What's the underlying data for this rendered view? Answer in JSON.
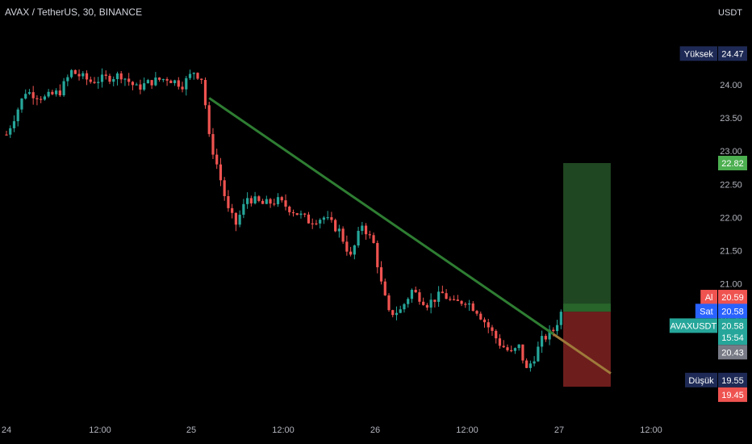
{
  "header": {
    "title": "AVAX / TetherUS, 30, BINANCE",
    "currency": "USDT"
  },
  "colors": {
    "background": "#000000",
    "up": "#26a69a",
    "down": "#ef5350",
    "trendline": "#2e7d32",
    "tp_zone": "#1f4722",
    "sl_zone": "#6e1d1d"
  },
  "chart_data": {
    "type": "candlestick",
    "y_ticks": [
      24.0,
      23.5,
      23.0,
      22.5,
      22.0,
      21.5,
      21.0,
      20.5,
      20.0
    ],
    "y_tick_labels": [
      "24.00",
      "23.50",
      "23.00",
      "22.50",
      "22.00",
      "21.50",
      "21.00",
      "20.50",
      "20.00"
    ],
    "x_tick_labels": [
      "24",
      "12:00",
      "25",
      "12:00",
      "26",
      "12:00",
      "27",
      "12:00"
    ],
    "close_path": [
      [
        0,
        23.25
      ],
      [
        5,
        23.9
      ],
      [
        10,
        23.8
      ],
      [
        14,
        23.9
      ],
      [
        17,
        24.2
      ],
      [
        22,
        24.05
      ],
      [
        26,
        24.1
      ],
      [
        30,
        24.15
      ],
      [
        34,
        23.95
      ],
      [
        38,
        24.05
      ],
      [
        42,
        24.1
      ],
      [
        46,
        24.0
      ],
      [
        49,
        24.2
      ],
      [
        51,
        24.1
      ],
      [
        52,
        23.7
      ],
      [
        53,
        23.2
      ],
      [
        55,
        22.8
      ],
      [
        58,
        22.1
      ],
      [
        60,
        21.9
      ],
      [
        63,
        22.3
      ],
      [
        67,
        22.2
      ],
      [
        71,
        22.25
      ],
      [
        75,
        22.1
      ],
      [
        79,
        21.95
      ],
      [
        83,
        22.0
      ],
      [
        87,
        21.8
      ],
      [
        90,
        21.4
      ],
      [
        93,
        21.9
      ],
      [
        96,
        21.6
      ],
      [
        98,
        21.0
      ],
      [
        100,
        20.55
      ],
      [
        103,
        20.6
      ],
      [
        106,
        20.9
      ],
      [
        110,
        20.7
      ],
      [
        114,
        20.85
      ],
      [
        117,
        20.7
      ],
      [
        120,
        20.75
      ],
      [
        123,
        20.6
      ],
      [
        126,
        20.35
      ],
      [
        129,
        20.1
      ],
      [
        132,
        19.95
      ],
      [
        134,
        20.05
      ],
      [
        136,
        19.7
      ],
      [
        138,
        19.9
      ],
      [
        140,
        20.15
      ],
      [
        143,
        20.3
      ],
      [
        145,
        20.55
      ]
    ],
    "trendline": {
      "from": [
        53,
        23.8
      ],
      "to": [
        158,
        19.65
      ]
    },
    "position": {
      "entry": 20.58,
      "target": 22.82,
      "stop": 19.45,
      "start_bar": 146,
      "end_bar": 158
    },
    "labels": [
      {
        "name": "high",
        "text": "Yüksek",
        "value": "24.47",
        "price": 24.47,
        "bg": "#1e2a55"
      },
      {
        "name": "target",
        "text": "",
        "value": "22.82",
        "price": 22.82,
        "bg": "#4caf50"
      },
      {
        "name": "ask",
        "text": "Al",
        "value": "20.59",
        "price": 20.8,
        "bg": "#ef5350"
      },
      {
        "name": "bid",
        "text": "Sat",
        "value": "20.58",
        "price": 20.59,
        "bg": "#2962ff"
      },
      {
        "name": "symbol",
        "text": "AVAXUSDT",
        "value": "20.58",
        "price": 20.37,
        "bg": "#26a69a"
      },
      {
        "name": "countdown",
        "text": "",
        "value": "15:54",
        "price": 20.19,
        "bg": "#26a69a"
      },
      {
        "name": "entry",
        "text": "",
        "value": "20.43",
        "price": 19.97,
        "bg": "#787b86"
      },
      {
        "name": "low",
        "text": "Düşük",
        "value": "19.55",
        "price": 19.55,
        "bg": "#1e2a55"
      },
      {
        "name": "stop",
        "text": "",
        "value": "19.45",
        "price": 19.33,
        "bg": "#ef5350"
      }
    ]
  }
}
